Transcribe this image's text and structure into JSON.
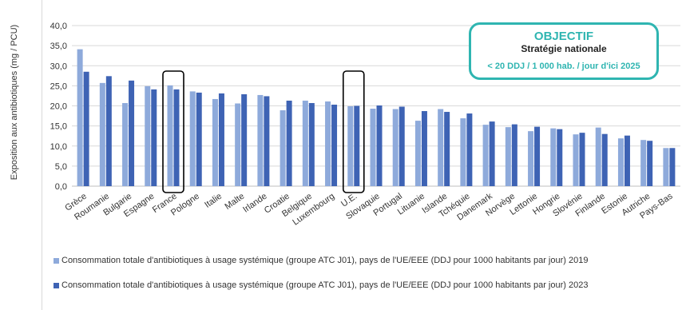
{
  "chart_data": {
    "type": "bar",
    "ylabel": "Exposition aux antibiotiques (mg / PCU)",
    "ylim": [
      0,
      40
    ],
    "yticks": [
      "0,0",
      "5,0",
      "10,0",
      "15,0",
      "20,0",
      "25,0",
      "30,0",
      "35,0",
      "40,0"
    ],
    "grid": true,
    "legend_position": "bottom",
    "categories": [
      "Grèce",
      "Roumanie",
      "Bulgarie",
      "Espagne",
      "France",
      "Pologne",
      "Italie",
      "Malte",
      "Irlande",
      "Croatie",
      "Belgique",
      "Luxembourg",
      "U.E.",
      "Slovaquie",
      "Portugal",
      "Lituanie",
      "Islande",
      "Tchéquie",
      "Danemark",
      "Norvège",
      "Lettonie",
      "Hongrie",
      "Slovénie",
      "Finlande",
      "Estonie",
      "Autriche",
      "Pays-Bas"
    ],
    "highlighted": [
      "France",
      "U.E."
    ],
    "series": [
      {
        "name": "Consommation totale d'antibiotiques à usage systémique (groupe ATC J01), pays de l'UE/EEE (DDJ pour 1000 habitants par jour)  2019",
        "color": "#8eaadb",
        "values": [
          34.1,
          25.7,
          20.7,
          24.9,
          25.1,
          23.6,
          21.7,
          20.6,
          22.7,
          18.9,
          21.3,
          21.1,
          19.9,
          19.3,
          19.2,
          16.3,
          19.2,
          16.9,
          15.3,
          14.7,
          13.7,
          14.4,
          12.9,
          14.6,
          11.9,
          11.5,
          9.5
        ]
      },
      {
        "name": "Consommation totale d'antibiotiques à usage systémique (groupe ATC J01), pays de l'UE/EEE (DDJ pour 1000 habitants par jour)  2023",
        "color": "#3e63b4",
        "values": [
          28.5,
          27.4,
          26.3,
          24.1,
          24.1,
          23.3,
          23.1,
          22.9,
          22.4,
          21.3,
          20.7,
          20.3,
          20.0,
          20.1,
          19.8,
          18.7,
          18.5,
          18.1,
          16.1,
          15.4,
          14.8,
          14.2,
          13.3,
          13.0,
          12.6,
          11.3,
          9.5
        ]
      }
    ]
  },
  "callout": {
    "title": "OBJECTIF",
    "subtitle": "Stratégie nationale",
    "target": "< 20 DDJ / 1 000 hab. / jour d'ici 2025"
  },
  "legend": {
    "item1": "Consommation totale d'antibiotiques à usage systémique (groupe ATC J01), pays de l'UE/EEE (DDJ pour 1000 habitants par jour)  2019",
    "item2": "Consommation totale d'antibiotiques à usage systémique (groupe ATC J01), pays de l'UE/EEE (DDJ pour 1000 habitants par jour)  2023"
  },
  "colors": {
    "series_2019": "#8eaadb",
    "series_2023": "#3e63b4",
    "accent": "#2fb5b1",
    "grid": "#d9d9d9",
    "highlight_box": "#000000"
  }
}
